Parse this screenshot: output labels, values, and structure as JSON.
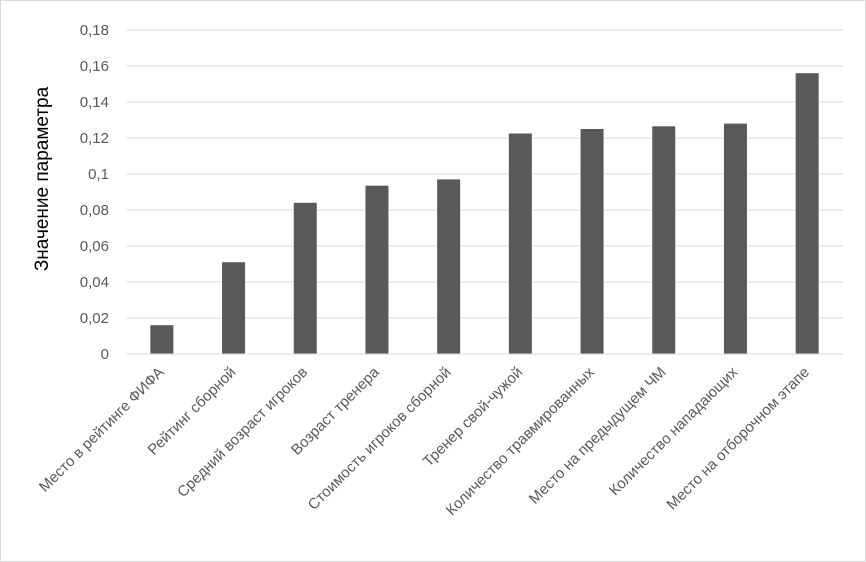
{
  "chart_data": {
    "type": "bar",
    "title": "",
    "xlabel": "",
    "ylabel": "Значение параметра",
    "ylim": [
      0,
      0.18
    ],
    "ytick_step": 0.02,
    "ytick_labels": [
      "0",
      "0,02",
      "0,04",
      "0,06",
      "0,08",
      "0,1",
      "0,12",
      "0,14",
      "0,16",
      "0,18"
    ],
    "grid": true,
    "legend": "none",
    "bar_color": "#595959",
    "grid_color": "#d9d9d9",
    "categories": [
      "Место в рейтинге ФИФА",
      "Рейтинг сборной",
      "Средний возраст игроков",
      "Возраст тренера",
      "Стоимость игроков сборной",
      "Тренер свой-чужой",
      "Количество травмированных",
      "Место на предыдущем ЧМ",
      "Количество нападающих",
      "Место на отборочном этапе"
    ],
    "values": [
      0.016,
      0.051,
      0.084,
      0.0935,
      0.097,
      0.1225,
      0.125,
      0.1265,
      0.128,
      0.156
    ]
  }
}
